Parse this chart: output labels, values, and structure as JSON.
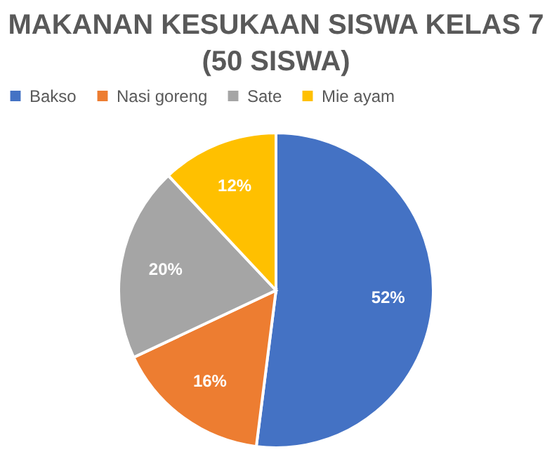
{
  "chart_data": {
    "type": "pie",
    "title": "MAKANAN KESUKAAN SISWA KELAS 7 (50 SISWA)",
    "categories": [
      "Bakso",
      "Nasi goreng",
      "Sate",
      "Mie ayam"
    ],
    "values": [
      52,
      16,
      20,
      12
    ],
    "colors": [
      "#4472c4",
      "#ed7d31",
      "#a5a5a5",
      "#ffc000"
    ],
    "value_labels": [
      "52%",
      "16%",
      "20%",
      "12%"
    ],
    "legend": "top"
  }
}
